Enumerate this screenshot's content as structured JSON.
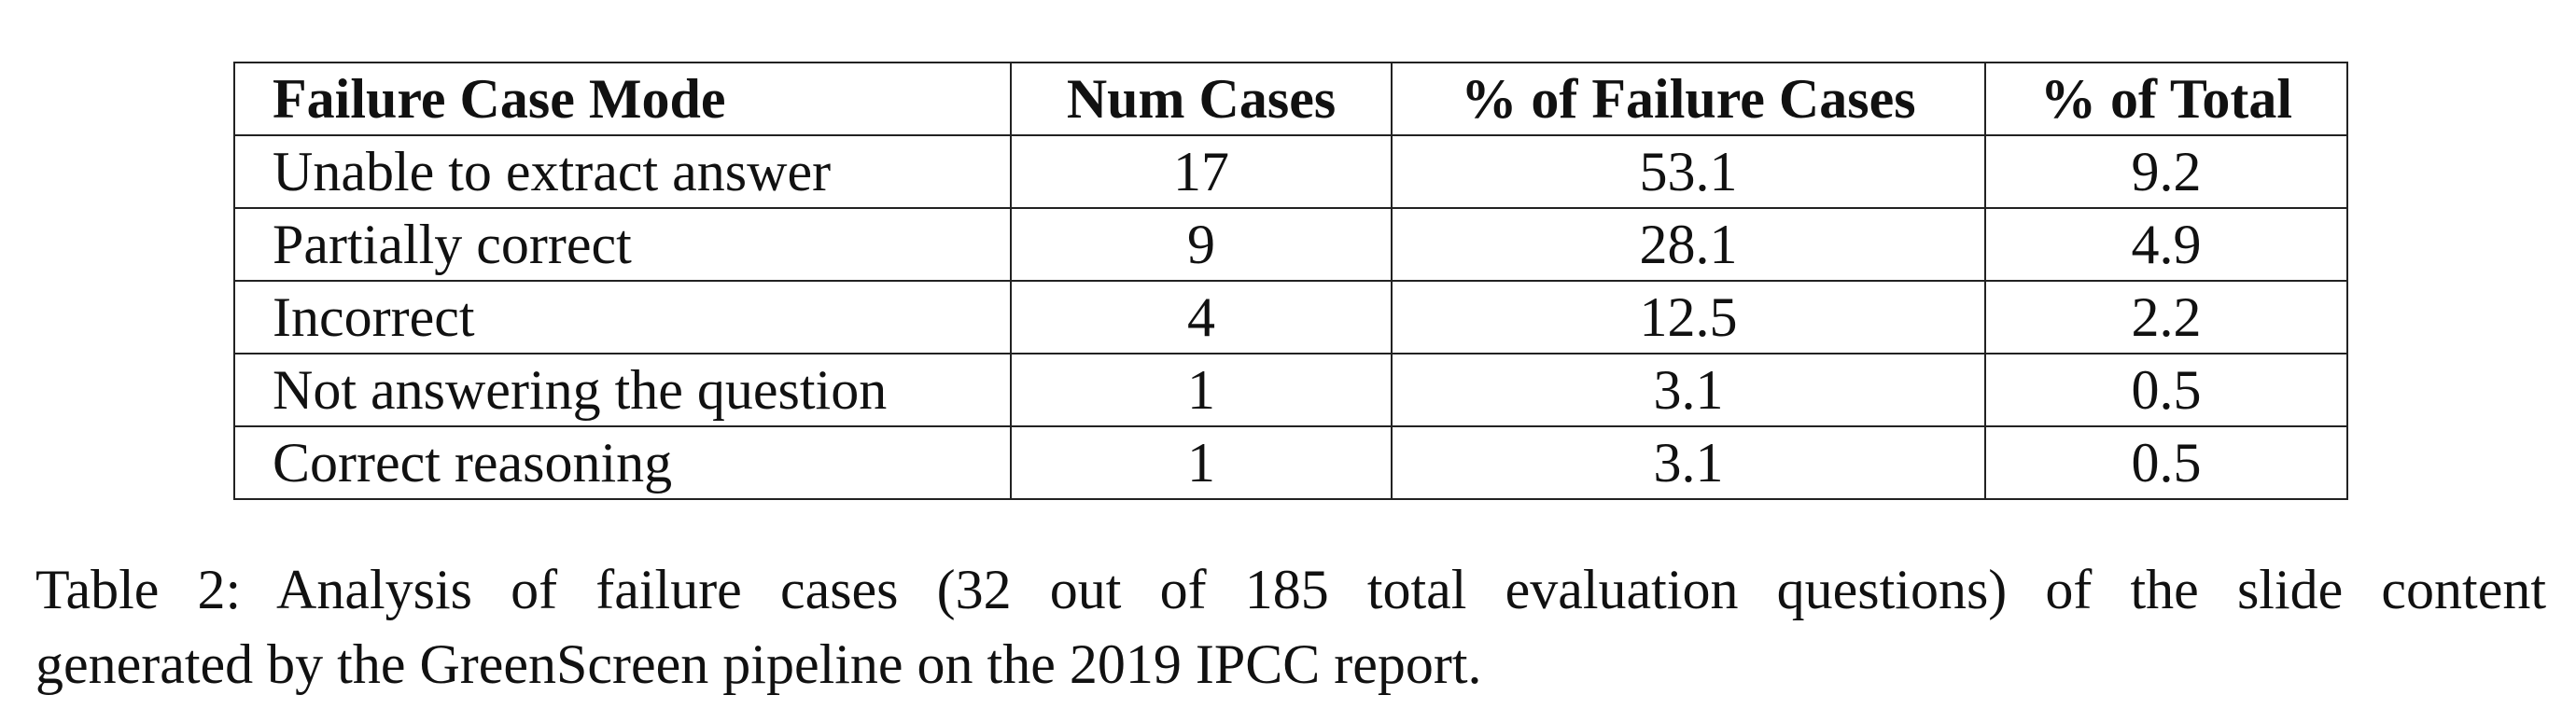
{
  "table": {
    "headers": [
      "Failure Case Mode",
      "Num Cases",
      "% of Failure Cases",
      "% of Total"
    ],
    "rows": [
      [
        "Unable to extract answer",
        "17",
        "53.1",
        "9.2"
      ],
      [
        "Partially correct",
        "9",
        "28.1",
        "4.9"
      ],
      [
        "Incorrect",
        "4",
        "12.5",
        "2.2"
      ],
      [
        "Not answering the question",
        "1",
        "3.1",
        "0.5"
      ],
      [
        "Correct reasoning",
        "1",
        "3.1",
        "0.5"
      ]
    ]
  },
  "caption": {
    "line1": "Table 2: Analysis of failure cases (32 out of 185 total evaluation questions) of the slide content",
    "line2": "generated by the GreenScreen pipeline on the 2019 IPCC report."
  }
}
